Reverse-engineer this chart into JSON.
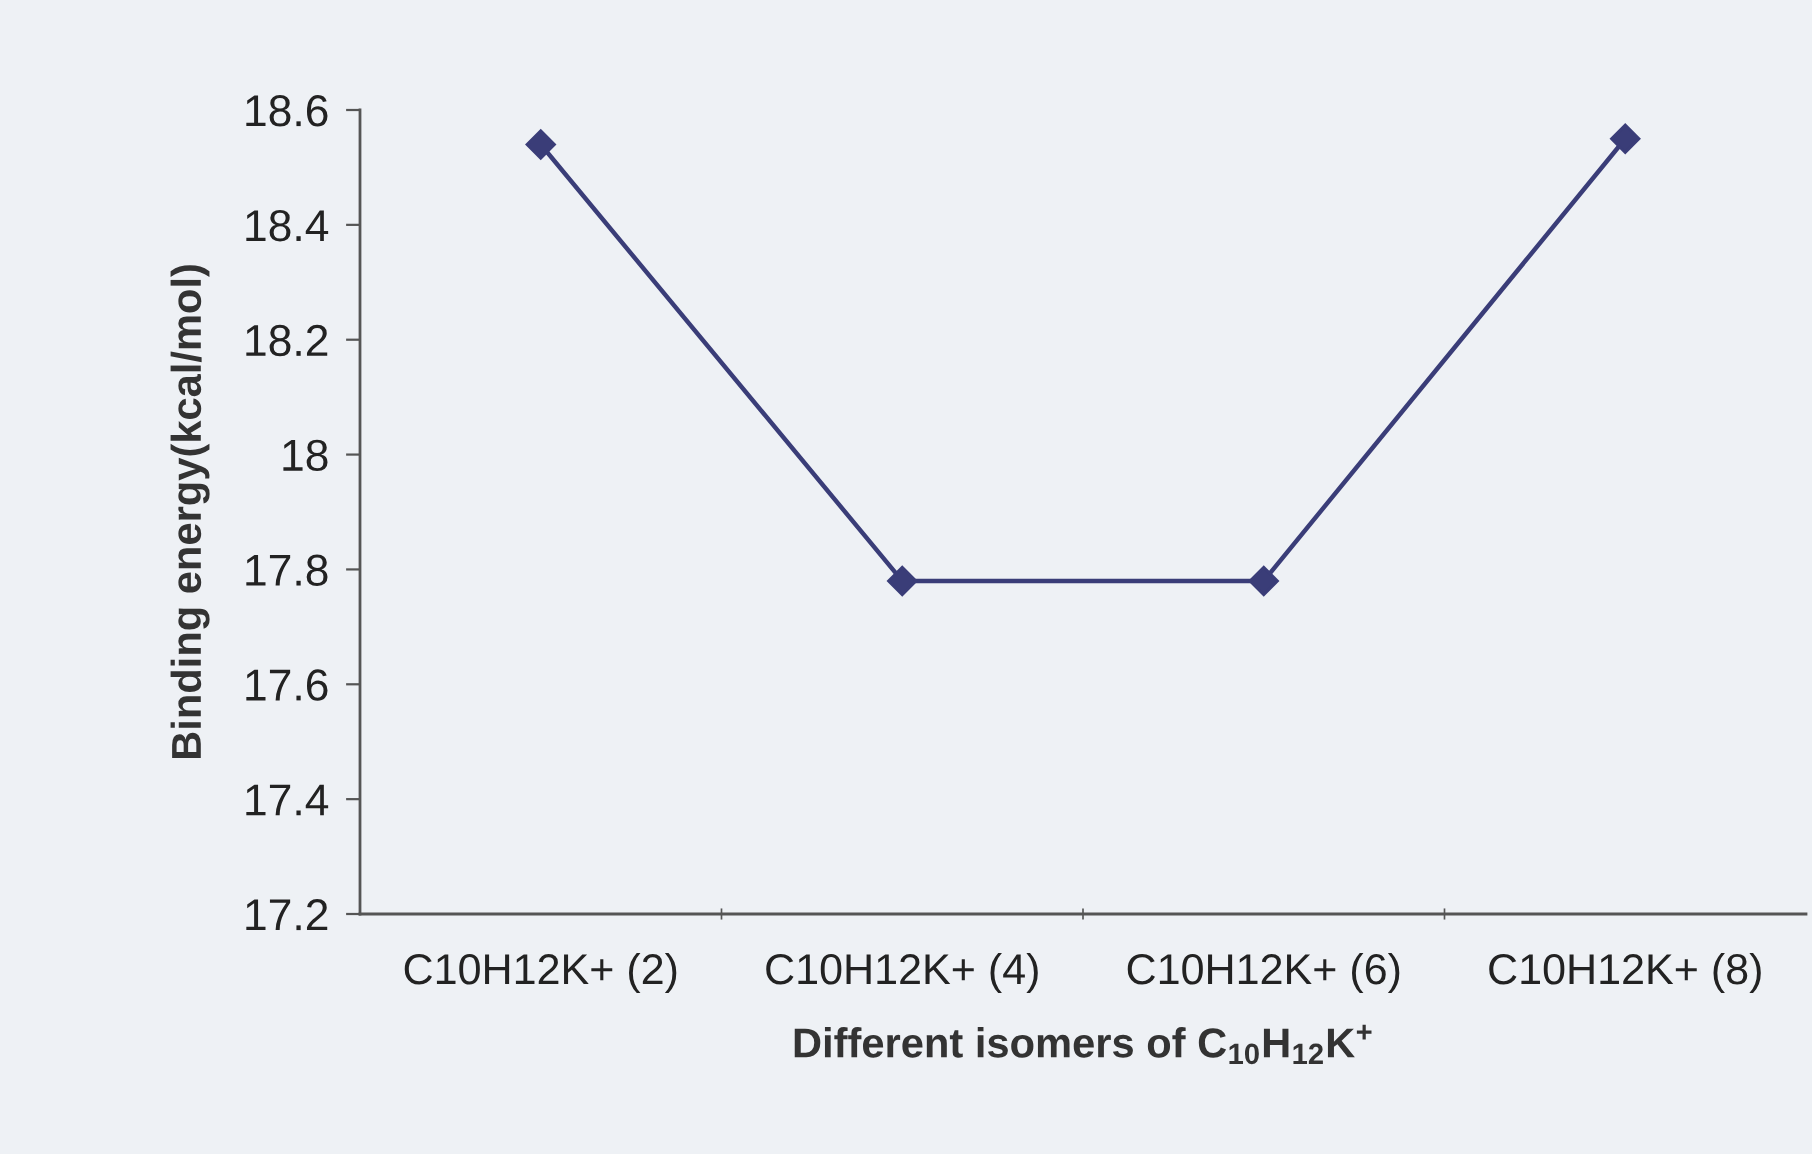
{
  "chart_data": {
    "type": "line",
    "xlabel": "Different isomers of C$_{10}$H$_{12}$K$^{+}$",
    "ylabel": "Binding energy(kcal/mol)",
    "categories": [
      "C10H12K+ (2)",
      "C10H12K+ (4)",
      "C10H12K+ (6)",
      "C10H12K+ (8)"
    ],
    "series": [
      {
        "color": "#3a3d78",
        "values": [
          18.54,
          17.78,
          17.78,
          18.55
        ]
      }
    ],
    "ylim": [
      17.2,
      18.6
    ],
    "yticks": [
      17.2,
      17.4,
      17.6,
      17.8,
      18,
      18.2,
      18.4,
      18.6
    ],
    "marker": "diamond",
    "line_style": "solid"
  }
}
